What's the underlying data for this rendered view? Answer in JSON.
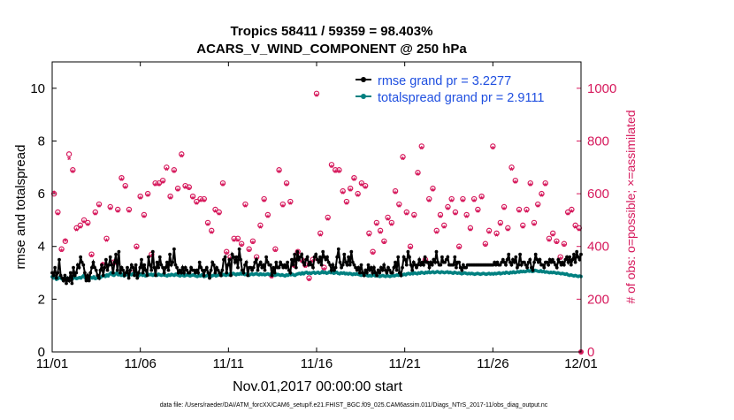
{
  "chart_data": {
    "type": "line",
    "title_line1": "Tropics 58411 / 59359 = 98.403%",
    "title_line2": "ACARS_V_WIND_COMPONENT @ 250 hPa",
    "xlabel": "Nov.01,2017 00:00:00 start",
    "ylabel_left": "rmse and totalspread",
    "ylabel_right": "# of obs: o=possible; ×=assimilated",
    "footer": "data file: /Users/raeder/DAI/ATM_forcXX/CAM6_setup/f.e21.FHIST_BGC.f09_025.CAM6assim.011/Diags_NTrS_2017-11/obs_diag_output.nc",
    "x_range_days": [
      0,
      30
    ],
    "x_ticks": [
      {
        "day": 0,
        "label": "11/01"
      },
      {
        "day": 5,
        "label": "11/06"
      },
      {
        "day": 10,
        "label": "11/11"
      },
      {
        "day": 15,
        "label": "11/16"
      },
      {
        "day": 20,
        "label": "11/21"
      },
      {
        "day": 25,
        "label": "11/26"
      },
      {
        "day": 30,
        "label": "12/01"
      }
    ],
    "ylim_left": [
      0,
      11
    ],
    "y_ticks_left": [
      0,
      2,
      4,
      6,
      8,
      10
    ],
    "ylim_right": [
      0,
      1100
    ],
    "y_ticks_right": [
      0,
      200,
      400,
      600,
      800,
      1000
    ],
    "legend": [
      {
        "name": "rmse grand pr = 3.2277",
        "color": "#000000"
      },
      {
        "name": "totalspread grand pr = 2.9111",
        "color": "#008080"
      }
    ],
    "colors": {
      "rmse": "#000000",
      "spread": "#008080",
      "obs": "#d6195c",
      "legend_text": "#1f4fe0",
      "axis": "#000000"
    },
    "series": [
      {
        "name": "rmse",
        "axis": "left",
        "values": [
          3.0,
          2.9,
          3.2,
          2.8,
          3.0,
          3.5,
          2.9,
          2.8,
          2.7,
          2.9,
          2.6,
          2.8,
          2.7,
          3.0,
          2.6,
          3.2,
          2.9,
          3.0,
          3.3,
          3.2,
          3.6,
          3.4,
          3.3,
          3.0,
          2.7,
          2.9,
          2.7,
          3.0,
          3.2,
          3.4,
          3.2,
          3.1,
          2.9,
          2.8,
          3.1,
          3.3,
          2.9,
          3.2,
          3.5,
          3.1,
          3.3,
          3.6,
          3.3,
          3.0,
          3.4,
          3.7,
          3.1,
          3.8,
          3.0,
          3.2,
          3.1,
          2.9,
          3.0,
          3.2,
          2.8,
          3.1,
          3.3,
          3.2,
          2.9,
          3.3,
          2.8,
          3.0,
          3.2,
          3.5,
          3.0,
          3.3,
          3.1,
          2.9,
          3.6,
          3.3,
          3.1,
          3.8,
          3.2,
          2.9,
          3.4,
          3.2,
          3.6,
          3.3,
          3.2,
          3.0,
          3.2,
          3.4,
          3.1,
          3.7,
          3.3,
          3.4,
          3.9,
          3.3,
          3.2,
          3.0,
          3.1,
          3.0,
          3.2,
          3.0,
          3.2,
          3.1,
          3.0,
          3.0,
          3.2,
          3.1,
          3.1,
          3.0,
          3.1,
          3.0,
          3.4,
          3.2,
          3.1,
          2.9,
          3.1,
          3.2,
          3.0,
          2.8,
          3.1,
          3.4,
          3.3,
          3.0,
          3.2,
          3.1,
          3.0,
          2.9,
          3.1,
          3.5,
          3.6,
          3.0,
          3.3,
          3.5,
          2.9,
          3.7,
          3.6,
          3.4,
          3.6,
          3.2,
          3.9,
          3.5,
          3.1,
          3.0,
          3.3,
          3.4,
          2.9,
          3.2,
          3.2,
          3.1,
          3.2,
          3.4,
          3.5,
          3.1,
          3.3,
          3.4,
          3.2,
          3.3,
          3.1,
          3.6,
          3.4,
          3.3,
          3.3,
          2.9,
          3.2,
          3.0,
          3.4,
          3.2,
          3.2,
          3.4,
          3.3,
          3.2,
          3.3,
          3.2,
          3.4,
          3.1,
          3.0,
          3.5,
          3.3,
          3.7,
          3.2,
          3.8,
          3.5,
          3.6,
          3.7,
          3.4,
          3.3,
          3.5,
          3.6,
          3.3,
          3.4,
          3.3,
          3.2,
          3.6,
          3.7,
          3.5,
          3.4,
          3.6,
          3.3,
          3.8,
          3.6,
          3.5,
          3.6,
          3.4,
          3.3,
          3.1,
          3.3,
          3.1,
          3.2,
          3.6,
          3.9,
          3.4,
          3.2,
          3.3,
          3.7,
          3.4,
          3.3,
          3.6,
          3.3,
          3.8,
          3.4,
          3.3,
          3.2,
          3.1,
          3.2,
          3.0,
          3.3,
          3.0,
          2.9,
          3.1,
          3.0,
          3.3,
          3.1,
          3.2,
          3.0,
          3.2,
          3.0,
          2.9,
          3.1,
          3.0,
          3.2,
          3.1,
          3.3,
          3.1,
          3.0,
          3.2,
          3.1,
          3.0,
          3.0,
          3.2,
          3.4,
          3.1,
          3.6,
          3.0,
          2.9,
          3.2,
          3.6,
          3.5,
          3.3,
          3.8,
          3.6,
          3.3,
          3.1,
          3.4,
          3.3,
          3.2,
          3.3,
          3.5,
          3.3,
          3.4,
          3.3,
          3.6,
          3.4,
          3.4,
          3.2,
          3.4,
          3.3,
          3.5,
          3.4,
          3.8,
          3.4,
          3.3,
          3.3,
          3.6,
          3.4,
          3.4,
          3.5,
          3.6,
          3.3,
          3.3,
          3.3,
          3.3,
          3.6,
          3.2,
          3.4,
          3.4,
          3.2,
          3.1,
          3.3,
          3.2,
          3.2,
          3.3,
          3.3,
          3.3,
          3.3,
          3.3,
          3.3,
          3.3,
          3.3,
          3.3,
          3.3,
          3.3,
          3.3,
          3.3,
          3.3,
          3.3,
          3.3,
          3.3,
          3.3,
          3.3,
          3.4,
          3.3,
          3.4,
          3.3,
          3.3,
          3.4,
          3.5,
          3.4,
          3.3,
          3.5,
          3.7,
          3.4,
          3.3,
          3.5,
          3.4,
          3.6,
          3.2,
          3.3,
          3.7,
          3.3,
          3.4,
          3.4,
          3.3,
          3.2,
          3.4,
          3.5,
          3.2,
          3.1,
          3.4,
          3.7,
          3.5,
          3.4,
          3.5,
          3.3,
          3.3,
          3.2,
          3.4,
          3.4,
          3.3,
          3.5,
          3.4,
          3.5,
          3.4,
          3.3,
          3.2,
          3.5,
          3.4,
          3.3,
          3.4,
          3.3,
          3.5,
          3.6,
          3.4,
          3.6,
          3.3,
          3.5,
          3.7,
          3.4,
          3.8,
          3.6,
          3.5,
          3.7
        ]
      },
      {
        "name": "totalspread",
        "axis": "left",
        "values": [
          2.85,
          2.8,
          2.82,
          2.75,
          2.78,
          2.82,
          2.8,
          2.76,
          2.78,
          2.82,
          2.8,
          2.75,
          2.78,
          2.82,
          2.77,
          2.8,
          2.83,
          2.78,
          2.8,
          2.82,
          2.8,
          2.85,
          2.9,
          2.8,
          2.75,
          2.8,
          2.78,
          2.82,
          2.8,
          2.85,
          2.78,
          2.8,
          2.82,
          2.79,
          2.84,
          2.88,
          2.9,
          2.86,
          2.92,
          2.88,
          2.95,
          3.0,
          2.92,
          2.9,
          2.95,
          3.0,
          2.92,
          2.96,
          2.9,
          2.94,
          2.88,
          2.92,
          2.95,
          2.9,
          2.94,
          2.92,
          2.96,
          2.93,
          2.95,
          2.9,
          2.88,
          2.92,
          2.95,
          2.9,
          2.92,
          2.88,
          2.9,
          2.94,
          2.92,
          2.95,
          2.9,
          2.94,
          2.92,
          2.9,
          2.95,
          2.92,
          2.9,
          2.93,
          2.91,
          2.9,
          2.88,
          2.92,
          2.9,
          2.94,
          2.92,
          2.9,
          2.95,
          2.92,
          2.9,
          2.88,
          2.92,
          2.9,
          2.88,
          2.9,
          2.93,
          2.9,
          2.88,
          2.9,
          2.92,
          2.9,
          2.88,
          2.86,
          2.9,
          2.88,
          2.92,
          2.88,
          2.86,
          2.88,
          2.9,
          2.88,
          2.85,
          2.88,
          2.9,
          2.92,
          2.88,
          2.9,
          2.92,
          2.95,
          2.9,
          2.94,
          2.92,
          2.9,
          2.95,
          2.92,
          2.96,
          2.94,
          2.98,
          2.95,
          2.92,
          2.96,
          2.94,
          2.98,
          2.95,
          2.96,
          2.93,
          2.95,
          2.92,
          2.9,
          2.94,
          2.96,
          2.93,
          2.95,
          2.97,
          2.94,
          2.92,
          2.96,
          2.93,
          2.95,
          2.92,
          2.94,
          2.96,
          2.93,
          2.95,
          2.92,
          2.94,
          2.9,
          2.92,
          2.94,
          2.92,
          2.9,
          2.93,
          2.9,
          2.88,
          2.92,
          2.9,
          2.94,
          2.92,
          2.95,
          2.92,
          2.9,
          2.94,
          2.96,
          2.98,
          2.95,
          3.0,
          2.96,
          3.0,
          3.02,
          2.98,
          3.0,
          2.97,
          3.0,
          3.02,
          2.98,
          3.0,
          3.02,
          2.98,
          3.0,
          3.05,
          3.0,
          3.02,
          2.98,
          3.0,
          3.04,
          3.0,
          3.02,
          2.98,
          3.0,
          3.02,
          2.98,
          2.96,
          3.0,
          2.98,
          3.0,
          2.96,
          2.98,
          2.95,
          2.98,
          2.96,
          2.93,
          2.96,
          2.94,
          2.96,
          2.94,
          2.92,
          2.9,
          2.92,
          2.9,
          2.92,
          2.9,
          2.88,
          2.9,
          2.88,
          2.9,
          2.92,
          2.88,
          2.9,
          2.88,
          2.86,
          2.88,
          2.9,
          2.88,
          2.86,
          2.9,
          2.88,
          2.86,
          2.88,
          2.9,
          2.88,
          2.9,
          2.92,
          2.9,
          2.94,
          2.9,
          2.92,
          2.95,
          2.92,
          2.96,
          2.98,
          2.95,
          2.98,
          2.96,
          3.0,
          2.98,
          2.96,
          3.0,
          2.98,
          3.02,
          3.0,
          2.98,
          3.02,
          3.0,
          3.04,
          3.0,
          3.02,
          3.04,
          3.0,
          3.02,
          3.05,
          3.02,
          3.0,
          3.04,
          3.02,
          3.0,
          3.02,
          3.04,
          3.0,
          3.02,
          3.0,
          2.98,
          3.02,
          3.0,
          2.98,
          3.0,
          2.98,
          2.96,
          2.98,
          3.0,
          2.98,
          2.96,
          2.98,
          2.96,
          2.98,
          2.96,
          2.94,
          2.96,
          2.98,
          2.96,
          2.94,
          2.96,
          2.98,
          2.96,
          2.94,
          2.96,
          2.98,
          2.95,
          2.97,
          2.95,
          2.98,
          2.96,
          2.98,
          3.0,
          2.96,
          2.98,
          3.0,
          2.98,
          3.02,
          3.0,
          2.98,
          3.02,
          3.0,
          3.04,
          3.0,
          3.02,
          3.05,
          3.02,
          3.06,
          3.04,
          3.06,
          3.04,
          3.06,
          3.1,
          3.06,
          3.08,
          3.05,
          3.06,
          3.1,
          3.08,
          3.06,
          3.05,
          3.08,
          3.04,
          3.06,
          3.02,
          3.04,
          3.02,
          3.0,
          3.02,
          3.0,
          3.02,
          3.0,
          2.98,
          3.0,
          2.98,
          2.96,
          2.98,
          2.96,
          2.94,
          2.96,
          2.92,
          2.9,
          2.92,
          2.9,
          2.88,
          2.9,
          2.88,
          2.86,
          2.88,
          2.86
        ]
      },
      {
        "name": "obs_possible",
        "axis": "right",
        "marker": "o",
        "values": [
          600,
          530,
          390,
          420,
          750,
          690,
          470,
          480,
          500,
          490,
          370,
          530,
          560,
          330,
          430,
          550,
          340,
          540,
          660,
          630,
          540,
          300,
          400,
          590,
          520,
          600,
          370,
          640,
          640,
          650,
          700,
          590,
          690,
          620,
          750,
          630,
          625,
          590,
          570,
          580,
          580,
          490,
          460,
          540,
          530,
          640,
          380,
          360,
          430,
          430,
          410,
          560,
          390,
          420,
          360,
          480,
          580,
          520,
          290,
          390,
          690,
          560,
          640,
          570,
          330,
          380,
          350,
          330,
          280,
          350,
          980,
          450,
          320,
          510,
          710,
          690,
          690,
          610,
          570,
          620,
          660,
          600,
          640,
          630,
          450,
          380,
          490,
          460,
          420,
          510,
          490,
          610,
          560,
          740,
          530,
          400,
          520,
          680,
          780,
          350,
          580,
          620,
          460,
          520,
          480,
          550,
          580,
          530,
          400,
          580,
          520,
          470,
          580,
          540,
          590,
          410,
          460,
          780,
          450,
          490,
          550,
          470,
          700,
          650,
          540,
          480,
          540,
          640,
          490,
          560,
          600,
          640,
          430,
          450,
          420,
          360,
          410,
          530,
          540,
          480,
          470
        ]
      },
      {
        "name": "obs_assimilated",
        "axis": "right",
        "marker": "x",
        "values": [
          600,
          520,
          380,
          420,
          730,
          680,
          460,
          470,
          490,
          480,
          360,
          520,
          550,
          330,
          420,
          540,
          330,
          530,
          650,
          620,
          530,
          290,
          390,
          580,
          510,
          590,
          360,
          630,
          630,
          640,
          690,
          580,
          680,
          610,
          740,
          620,
          615,
          580,
          560,
          570,
          570,
          480,
          450,
          530,
          520,
          630,
          370,
          350,
          420,
          420,
          400,
          550,
          380,
          410,
          350,
          470,
          570,
          510,
          280,
          380,
          680,
          550,
          630,
          560,
          320,
          370,
          340,
          320,
          270,
          340,
          970,
          440,
          310,
          500,
          700,
          680,
          680,
          600,
          560,
          610,
          650,
          590,
          630,
          620,
          440,
          370,
          480,
          450,
          410,
          500,
          480,
          600,
          550,
          730,
          520,
          390,
          510,
          670,
          770,
          340,
          570,
          610,
          450,
          510,
          470,
          540,
          570,
          520,
          390,
          570,
          510,
          460,
          570,
          530,
          580,
          400,
          450,
          770,
          440,
          480,
          540,
          460,
          690,
          640,
          530,
          470,
          530,
          630,
          480,
          550,
          590,
          630,
          420,
          440,
          410,
          350,
          400,
          520,
          530,
          470,
          460
        ]
      }
    ]
  }
}
